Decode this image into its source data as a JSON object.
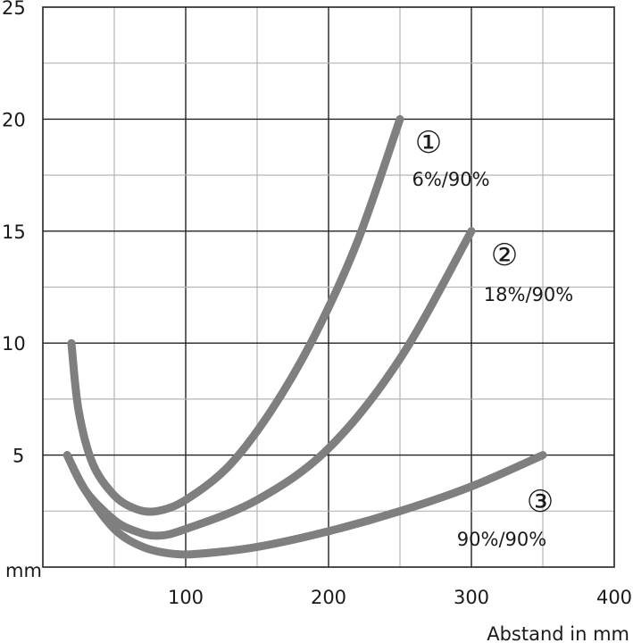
{
  "chart_data": {
    "type": "line",
    "xlabel": "Abstand in mm",
    "x_unit_label": "mm",
    "xlim": [
      0,
      400
    ],
    "ylim": [
      0,
      25
    ],
    "x_ticks": [
      "100",
      "200",
      "300",
      "400"
    ],
    "y_ticks": [
      "5",
      "10",
      "15",
      "20",
      "25"
    ],
    "grid": true,
    "line_color": "#7f7f80",
    "series": [
      {
        "marker": "①",
        "name": "6%/90%",
        "x": [
          20,
          25,
          35,
          50,
          65,
          80,
          100,
          130,
          160,
          190,
          220,
          250
        ],
        "y": [
          10,
          7,
          4.6,
          3.2,
          2.6,
          2.5,
          3,
          4.5,
          7,
          10.3,
          14.5,
          20
        ]
      },
      {
        "marker": "②",
        "name": "18%/90%",
        "x": [
          17,
          30,
          50,
          65,
          80,
          100,
          150,
          200,
          250,
          300
        ],
        "y": [
          5,
          3.4,
          2.1,
          1.6,
          1.4,
          1.7,
          3,
          5.3,
          9.3,
          15
        ]
      },
      {
        "marker": "③",
        "name": "90%/90%",
        "x": [
          17,
          30,
          50,
          70,
          90,
          110,
          150,
          200,
          250,
          300,
          350
        ],
        "y": [
          5,
          3.4,
          1.7,
          0.9,
          0.6,
          0.6,
          0.9,
          1.6,
          2.5,
          3.6,
          5
        ]
      }
    ]
  }
}
